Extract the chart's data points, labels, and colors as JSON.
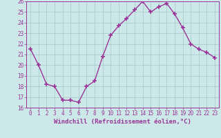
{
  "x": [
    0,
    1,
    2,
    3,
    4,
    5,
    6,
    7,
    8,
    9,
    10,
    11,
    12,
    13,
    14,
    15,
    16,
    17,
    18,
    19,
    20,
    21,
    22,
    23
  ],
  "y": [
    21.5,
    20.0,
    18.2,
    18.0,
    16.7,
    16.7,
    16.5,
    18.0,
    18.5,
    20.8,
    22.8,
    23.7,
    24.4,
    25.2,
    26.0,
    25.0,
    25.5,
    25.8,
    24.8,
    23.5,
    22.0,
    21.5,
    21.2,
    20.7
  ],
  "line_color": "#993399",
  "marker": "+",
  "marker_size": 5,
  "marker_lw": 1.2,
  "bg_color": "#cce8e8",
  "grid_color": "#aacccc",
  "xlabel": "Windchill (Refroidissement éolien,°C)",
  "ylim": [
    16,
    26
  ],
  "xlim_min": -0.5,
  "xlim_max": 23.5,
  "yticks": [
    16,
    17,
    18,
    19,
    20,
    21,
    22,
    23,
    24,
    25,
    26
  ],
  "xticks": [
    0,
    1,
    2,
    3,
    4,
    5,
    6,
    7,
    8,
    9,
    10,
    11,
    12,
    13,
    14,
    15,
    16,
    17,
    18,
    19,
    20,
    21,
    22,
    23
  ],
  "tick_fontsize": 5.5,
  "xlabel_fontsize": 6.5,
  "axis_color": "#993399",
  "line_width": 1.0
}
